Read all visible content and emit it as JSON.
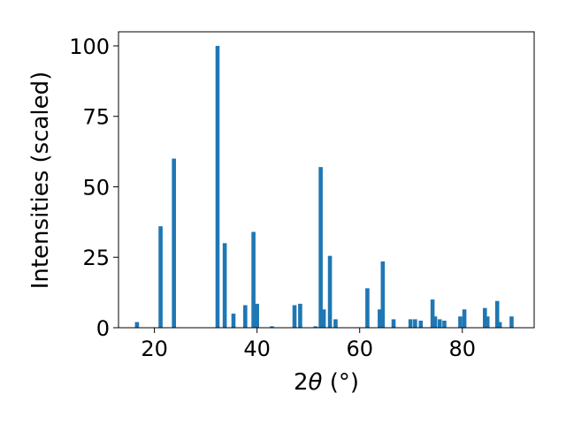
{
  "chart_data": {
    "type": "bar",
    "xlabel_prefix": "2",
    "xlabel_symbol": "θ",
    "xlabel_suffix": " (°)",
    "ylabel": "Intensities (scaled)",
    "xlim": [
      13,
      94
    ],
    "ylim": [
      0,
      105
    ],
    "xticks": [
      20,
      40,
      60,
      80
    ],
    "yticks": [
      0,
      25,
      50,
      75,
      100
    ],
    "bar_color": "#1f77b4",
    "bars": [
      {
        "x": 16.6,
        "y": 2
      },
      {
        "x": 21.2,
        "y": 36
      },
      {
        "x": 23.8,
        "y": 60
      },
      {
        "x": 32.3,
        "y": 100
      },
      {
        "x": 33.7,
        "y": 30
      },
      {
        "x": 35.4,
        "y": 5
      },
      {
        "x": 37.7,
        "y": 8
      },
      {
        "x": 39.3,
        "y": 34
      },
      {
        "x": 40.0,
        "y": 8.5
      },
      {
        "x": 42.9,
        "y": 0.5
      },
      {
        "x": 47.3,
        "y": 8
      },
      {
        "x": 48.4,
        "y": 8.5
      },
      {
        "x": 51.4,
        "y": 0.5
      },
      {
        "x": 52.4,
        "y": 57
      },
      {
        "x": 53.0,
        "y": 6.5
      },
      {
        "x": 54.2,
        "y": 25.5
      },
      {
        "x": 55.3,
        "y": 3
      },
      {
        "x": 61.5,
        "y": 14
      },
      {
        "x": 63.9,
        "y": 6.5
      },
      {
        "x": 64.5,
        "y": 23.5
      },
      {
        "x": 66.6,
        "y": 3
      },
      {
        "x": 69.9,
        "y": 3
      },
      {
        "x": 70.8,
        "y": 3
      },
      {
        "x": 71.9,
        "y": 2.5
      },
      {
        "x": 74.2,
        "y": 10
      },
      {
        "x": 74.7,
        "y": 4
      },
      {
        "x": 75.6,
        "y": 3
      },
      {
        "x": 76.5,
        "y": 2.5
      },
      {
        "x": 79.6,
        "y": 4
      },
      {
        "x": 80.4,
        "y": 6.5
      },
      {
        "x": 84.4,
        "y": 7
      },
      {
        "x": 84.9,
        "y": 4
      },
      {
        "x": 86.8,
        "y": 9.5
      },
      {
        "x": 87.3,
        "y": 2
      },
      {
        "x": 89.6,
        "y": 4
      }
    ]
  }
}
